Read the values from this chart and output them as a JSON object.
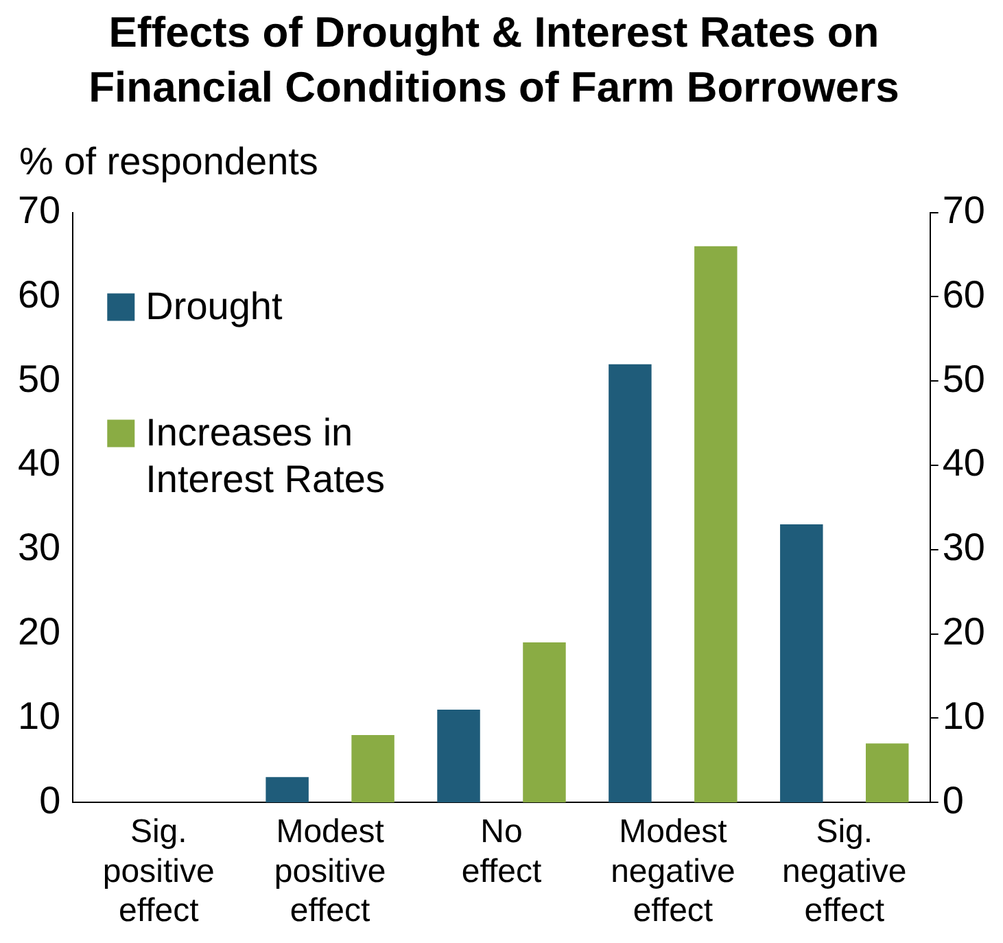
{
  "chart_data": {
    "type": "bar",
    "title": "Effects of Drought & Interest Rates on Financial Conditions of Farm Borrowers",
    "ylabel": "% of respondents",
    "categories": [
      "Sig. positive effect",
      "Modest positive effect",
      "No effect",
      "Modest negative effect",
      "Sig. negative effect"
    ],
    "series": [
      {
        "name": "Drought",
        "color": "#1f5c7a",
        "values": [
          0,
          3,
          11,
          52,
          33
        ]
      },
      {
        "name": "Increases in Interest Rates",
        "color": "#8aac44",
        "values": [
          0,
          8,
          19,
          66,
          7
        ]
      }
    ],
    "ylim": [
      0,
      70
    ],
    "yticks": [
      0,
      10,
      20,
      30,
      40,
      50,
      60,
      70
    ],
    "y2lim": [
      0,
      70
    ],
    "y2ticks": [
      0,
      10,
      20,
      30,
      40,
      50,
      60,
      70
    ],
    "grid": false,
    "legend": "top left"
  }
}
